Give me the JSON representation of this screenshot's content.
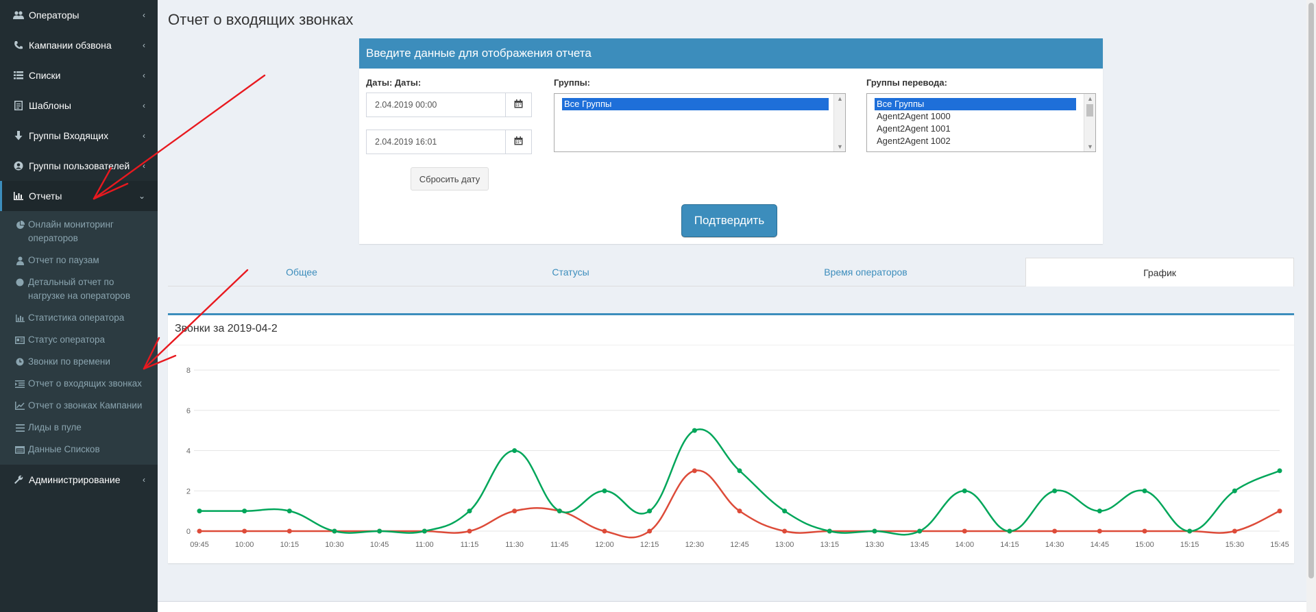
{
  "sidebar": {
    "items": [
      {
        "label": "Операторы",
        "icon": "users-icon"
      },
      {
        "label": "Кампании обзвона",
        "icon": "phone-icon"
      },
      {
        "label": "Списки",
        "icon": "list-icon"
      },
      {
        "label": "Шаблоны",
        "icon": "template-icon"
      },
      {
        "label": "Группы Входящих",
        "icon": "arrow-down-icon"
      },
      {
        "label": "Группы пользователей",
        "icon": "user-circle-icon"
      },
      {
        "label": "Отчеты",
        "icon": "bar-chart-icon"
      },
      {
        "label": "Администрирование",
        "icon": "wrench-icon"
      }
    ],
    "reports_submenu": [
      {
        "label": "Онлайн мониторинг операторов",
        "icon": "pie-chart-icon"
      },
      {
        "label": "Отчет по паузам",
        "icon": "user-icon"
      },
      {
        "label": "Детальный отчет по нагрузке на операторов",
        "icon": "circle-icon"
      },
      {
        "label": "Статистика оператора",
        "icon": "bar-chart-icon"
      },
      {
        "label": "Статус оператора",
        "icon": "id-card-icon"
      },
      {
        "label": "Звонки по времени",
        "icon": "clock-icon"
      },
      {
        "label": "Отчет о входящих звонках",
        "icon": "indent-icon"
      },
      {
        "label": "Отчет о звонках Кампании",
        "icon": "line-chart-icon"
      },
      {
        "label": "Лиды в пуле",
        "icon": "bars-icon"
      },
      {
        "label": "Данные Списков",
        "icon": "table-icon"
      }
    ]
  },
  "page": {
    "title": "Отчет о входящих звонках"
  },
  "form": {
    "header": "Введите данные для отображения отчета",
    "dates_label": "Даты: Даты:",
    "date_from": "2.04.2019 00:00",
    "date_to": "2.04.2019 16:01",
    "reset_label": "Сбросить дату",
    "groups_label": "Группы:",
    "groups_options": [
      "Все Группы"
    ],
    "transfer_label": "Группы перевода:",
    "transfer_options": [
      "Все Группы",
      "Agent2Agent 1000",
      "Agent2Agent 1001",
      "Agent2Agent 1002"
    ],
    "submit_label": "Подтвердить"
  },
  "tabs": [
    {
      "label": "Общее",
      "active": false
    },
    {
      "label": "Статусы",
      "active": false
    },
    {
      "label": "Время операторов",
      "active": false
    },
    {
      "label": "График",
      "active": true
    }
  ],
  "chart_data": {
    "type": "line",
    "title": "Звонки за 2019-04-2",
    "x": [
      "09:45",
      "10:00",
      "10:15",
      "10:30",
      "10:45",
      "11:00",
      "11:15",
      "11:30",
      "11:45",
      "12:00",
      "12:15",
      "12:30",
      "12:45",
      "13:00",
      "13:15",
      "13:30",
      "13:45",
      "14:00",
      "14:15",
      "14:30",
      "14:45",
      "15:00",
      "15:15",
      "15:30",
      "15:45"
    ],
    "ylim": [
      0,
      8
    ],
    "yticks": [
      0,
      2,
      4,
      6,
      8
    ],
    "grid": true,
    "series": [
      {
        "color": "#00a65a",
        "values": [
          1,
          1,
          1,
          0,
          0,
          0,
          1,
          4,
          1,
          2,
          1,
          5,
          3,
          1,
          0,
          0,
          0,
          2,
          0,
          2,
          1,
          2,
          0,
          2,
          3
        ]
      },
      {
        "color": "#dd4b39",
        "values": [
          0,
          0,
          0,
          0,
          0,
          0,
          0,
          1,
          1,
          0,
          0,
          3,
          1,
          0,
          0,
          0,
          0,
          0,
          0,
          0,
          0,
          0,
          0,
          0,
          1
        ]
      }
    ]
  }
}
